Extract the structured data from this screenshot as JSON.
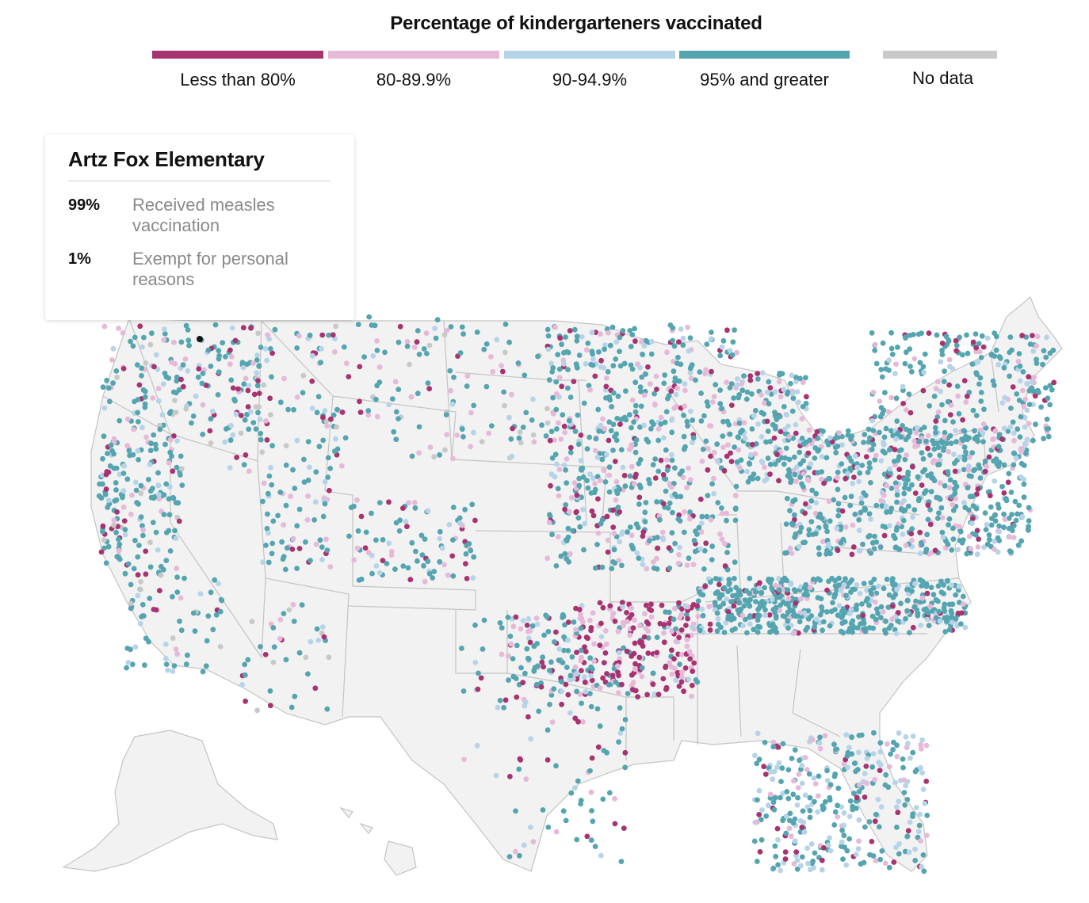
{
  "legend": {
    "title": "Percentage of kindergarteners vaccinated",
    "items": [
      {
        "label": "Less than 80%",
        "color": "#a83371"
      },
      {
        "label": "80-89.9%",
        "color": "#e6b9d8"
      },
      {
        "label": "90-94.9%",
        "color": "#b6d3e8"
      },
      {
        "label": "95% and greater",
        "color": "#55a5b0"
      },
      {
        "label": "No data",
        "color": "#c8c8c8"
      }
    ]
  },
  "tooltip": {
    "school": "Artz Fox Elementary",
    "rows": [
      {
        "value": "99%",
        "line1": "Received measles",
        "line2": "vaccination"
      },
      {
        "value": "1%",
        "line1": "Exempt for personal",
        "line2": "reasons"
      }
    ]
  },
  "map": {
    "land_color": "#f2f2f2",
    "border_color": "#c4c4c4",
    "selected_school_color": "#111111"
  }
}
